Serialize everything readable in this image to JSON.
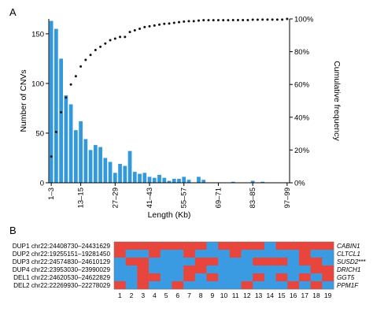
{
  "panel_a_label": "A",
  "panel_b_label": "B",
  "colors": {
    "bar": "#3399dd",
    "dot": "#111111",
    "dup": "#e8453c",
    "del": "#3b9be2"
  },
  "chart_data": [
    {
      "type": "bar",
      "xlabel": "Length (Kb)",
      "ylabel": "Number of CNVs",
      "y2label": "Cumulative frequency",
      "ylim": [
        0,
        165
      ],
      "y2lim": [
        0,
        100
      ],
      "yticks": [
        0,
        50,
        100,
        150
      ],
      "y2ticks": [
        "0%",
        "20%",
        "40%",
        "60%",
        "80%",
        "100%"
      ],
      "grid": false,
      "xticks": [
        {
          "bin": 1,
          "label": "1–3"
        },
        {
          "bin": 7,
          "label": "13–15"
        },
        {
          "bin": 14,
          "label": "27–29"
        },
        {
          "bin": 21,
          "label": "41–43"
        },
        {
          "bin": 28,
          "label": "55–57"
        },
        {
          "bin": 35,
          "label": "69–71"
        },
        {
          "bin": 42,
          "label": "83–85"
        },
        {
          "bin": 49,
          "label": "97–99"
        }
      ],
      "bins": [
        1,
        2,
        3,
        4,
        5,
        6,
        7,
        8,
        9,
        10,
        11,
        12,
        13,
        14,
        15,
        16,
        17,
        18,
        19,
        20,
        21,
        22,
        23,
        24,
        25,
        26,
        27,
        28,
        29,
        30,
        31,
        32,
        33,
        34,
        35,
        36,
        37,
        38,
        39,
        40,
        41,
        42,
        43,
        44,
        45,
        46,
        47,
        48,
        49
      ],
      "values": [
        163,
        155,
        125,
        88,
        79,
        53,
        62,
        44,
        33,
        38,
        36,
        25,
        21,
        10,
        19,
        17,
        32,
        11,
        9,
        10,
        6,
        5,
        8,
        5,
        2,
        4,
        4,
        6,
        3,
        0,
        6,
        3,
        0,
        0,
        0,
        0,
        0,
        1,
        0,
        0,
        0,
        2,
        0,
        1,
        0,
        0,
        0,
        0,
        0
      ],
      "cumulative_pct": [
        16,
        31,
        43,
        52,
        60,
        65,
        71,
        75,
        78,
        81,
        83,
        85,
        87,
        88,
        89,
        89,
        92,
        93,
        94,
        95,
        95.5,
        96,
        96.5,
        97,
        97.2,
        97.6,
        98,
        98.4,
        98.6,
        98.6,
        99,
        99.2,
        99.2,
        99.2,
        99.2,
        99.2,
        99.2,
        99.3,
        99.3,
        99.3,
        99.3,
        99.5,
        99.5,
        99.6,
        99.6,
        99.6,
        99.6,
        99.6,
        100
      ]
    },
    {
      "type": "heatmap",
      "rows": [
        {
          "label": "DUP1 chr22:24408730–24431629",
          "gene": "CABIN1",
          "gene_suffix": ""
        },
        {
          "label": "DUP2 chr22:19255151–19281450",
          "gene": "CLTCL1",
          "gene_suffix": ""
        },
        {
          "label": "DUP3 chr22:24574830–24610129",
          "gene": "SUSD2",
          "gene_suffix": "***"
        },
        {
          "label": "DUP4 chr22:23953030–23990029",
          "gene": "DRICH1",
          "gene_suffix": ""
        },
        {
          "label": "DEL1 chr22:24620530–24622829",
          "gene": "GGT5",
          "gene_suffix": ""
        },
        {
          "label": "DEL2 chr22:22269930–22278029",
          "gene": "PPM1F",
          "gene_suffix": ""
        }
      ],
      "columns": [
        "1",
        "2",
        "3",
        "4",
        "5",
        "6",
        "7",
        "8",
        "9",
        "10",
        "11",
        "12",
        "13",
        "14",
        "15",
        "16",
        "17",
        "18",
        "19"
      ],
      "cells": [
        [
          0,
          0,
          0,
          0,
          0,
          0,
          0,
          0,
          1,
          0,
          0,
          0,
          0,
          1,
          0,
          0,
          0,
          0,
          0
        ],
        [
          0,
          1,
          1,
          0,
          1,
          1,
          0,
          1,
          1,
          1,
          0,
          1,
          1,
          1,
          1,
          1,
          0,
          1,
          1
        ],
        [
          1,
          0,
          0,
          1,
          1,
          1,
          1,
          0,
          0,
          1,
          1,
          1,
          0,
          0,
          0,
          1,
          0,
          0,
          1
        ],
        [
          1,
          1,
          0,
          1,
          1,
          1,
          0,
          0,
          1,
          1,
          1,
          1,
          1,
          1,
          1,
          1,
          1,
          0,
          0
        ],
        [
          1,
          1,
          0,
          0,
          1,
          1,
          0,
          1,
          0,
          1,
          1,
          1,
          0,
          1,
          0,
          1,
          0,
          1,
          0
        ],
        [
          0,
          1,
          0,
          1,
          1,
          0,
          1,
          1,
          1,
          1,
          1,
          0,
          1,
          1,
          1,
          0,
          1,
          0,
          1
        ]
      ]
    }
  ]
}
